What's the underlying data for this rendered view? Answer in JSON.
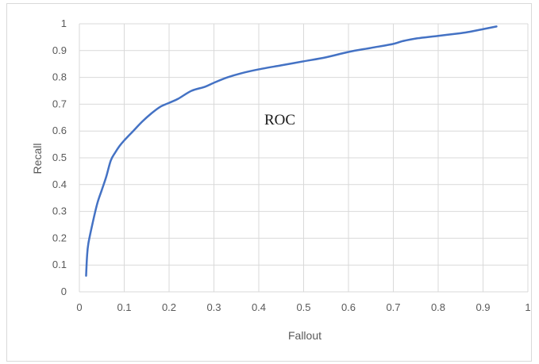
{
  "chart_data": {
    "type": "line",
    "title": "",
    "xlabel": "Fallout",
    "ylabel": "Recall",
    "annotation": "ROC",
    "xlim": [
      0,
      1
    ],
    "ylim": [
      0,
      1
    ],
    "x_ticks": [
      "0",
      "0.1",
      "0.2",
      "0.3",
      "0.4",
      "0.5",
      "0.6",
      "0.7",
      "0.8",
      "0.9",
      "1"
    ],
    "y_ticks": [
      "0",
      "0.1",
      "0.2",
      "0.3",
      "0.4",
      "0.5",
      "0.6",
      "0.7",
      "0.8",
      "0.9",
      "1"
    ],
    "grid": true,
    "legend": "none",
    "line_color": "#4472c4",
    "series": [
      {
        "x": [
          0.015,
          0.017,
          0.02,
          0.03,
          0.04,
          0.05,
          0.06,
          0.07,
          0.08,
          0.09,
          0.1,
          0.12,
          0.14,
          0.16,
          0.18,
          0.2,
          0.22,
          0.25,
          0.28,
          0.3,
          0.33,
          0.36,
          0.4,
          0.45,
          0.5,
          0.55,
          0.6,
          0.65,
          0.7,
          0.72,
          0.75,
          0.8,
          0.85,
          0.87,
          0.9,
          0.93
        ],
        "y": [
          0.06,
          0.13,
          0.18,
          0.26,
          0.33,
          0.38,
          0.43,
          0.49,
          0.52,
          0.545,
          0.565,
          0.6,
          0.635,
          0.665,
          0.69,
          0.705,
          0.72,
          0.75,
          0.765,
          0.78,
          0.8,
          0.815,
          0.83,
          0.845,
          0.86,
          0.875,
          0.895,
          0.91,
          0.925,
          0.935,
          0.945,
          0.955,
          0.965,
          0.97,
          0.98,
          0.99
        ]
      }
    ]
  }
}
